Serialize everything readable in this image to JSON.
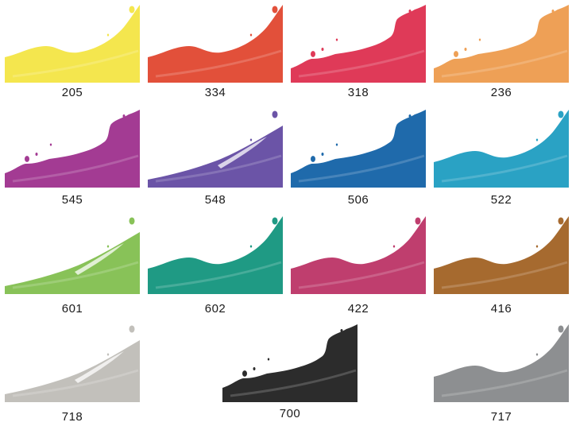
{
  "swatches": [
    {
      "code": "205",
      "color": "#f4e64e",
      "shape": "smooth-wave"
    },
    {
      "code": "334",
      "color": "#e2503a",
      "shape": "smooth-wave"
    },
    {
      "code": "318",
      "color": "#df3a58",
      "shape": "splash"
    },
    {
      "code": "236",
      "color": "#eea056",
      "shape": "splash"
    },
    {
      "code": "545",
      "color": "#a33b93",
      "shape": "splash"
    },
    {
      "code": "548",
      "color": "#6b54a7",
      "shape": "streak"
    },
    {
      "code": "506",
      "color": "#1f6aab",
      "shape": "splash"
    },
    {
      "code": "522",
      "color": "#2aa2c4",
      "shape": "smooth-wave"
    },
    {
      "code": "601",
      "color": "#88c258",
      "shape": "streak"
    },
    {
      "code": "602",
      "color": "#1f9a84",
      "shape": "smooth-wave"
    },
    {
      "code": "422",
      "color": "#bf3e6e",
      "shape": "smooth-wave"
    },
    {
      "code": "416",
      "color": "#a66a2f",
      "shape": "smooth-wave"
    },
    {
      "code": "718",
      "color": "#c2c0bb",
      "shape": "streak"
    },
    {
      "code": "700",
      "color": "#2c2c2c",
      "shape": "splash"
    },
    {
      "code": "717",
      "color": "#8d8f91",
      "shape": "smooth-wave"
    }
  ]
}
